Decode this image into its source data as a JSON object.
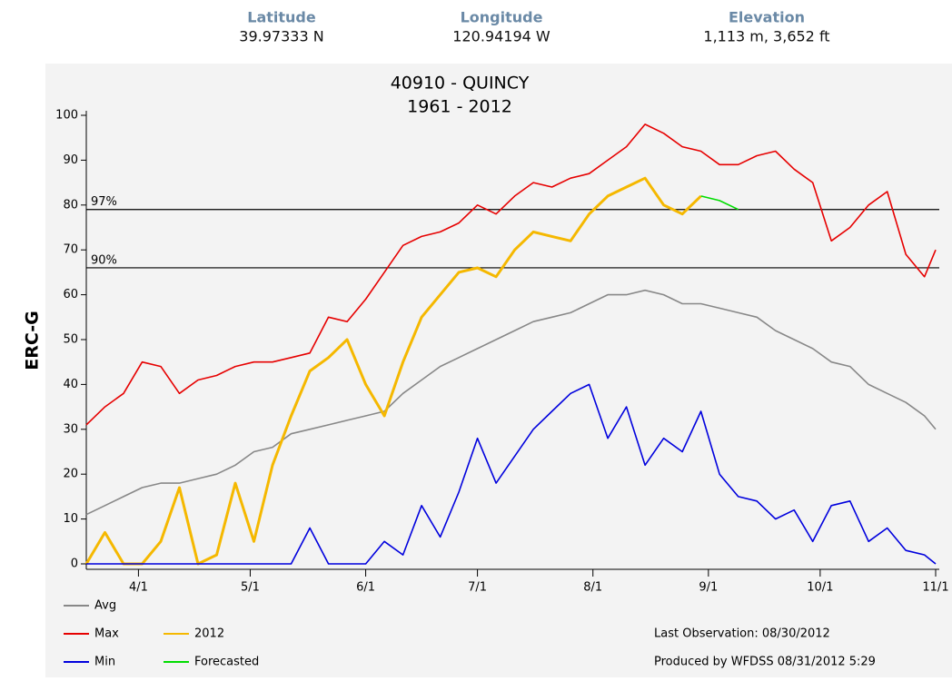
{
  "header": {
    "latitude": {
      "label": "Latitude",
      "value": "39.97333 N"
    },
    "longitude": {
      "label": "Longitude",
      "value": "120.94194 W"
    },
    "elevation": {
      "label": "Elevation",
      "value": "1,113 m, 3,652 ft"
    }
  },
  "chart_data": {
    "type": "line",
    "title": "40910 - QUINCY",
    "subtitle": "1961 - 2012",
    "y_label": "ERC-G",
    "x": [
      "3/18",
      "3/23",
      "3/28",
      "4/2",
      "4/7",
      "4/12",
      "4/17",
      "4/22",
      "4/27",
      "5/2",
      "5/7",
      "5/12",
      "5/17",
      "5/22",
      "5/27",
      "6/1",
      "6/6",
      "6/11",
      "6/16",
      "6/21",
      "6/26",
      "7/1",
      "7/6",
      "7/11",
      "7/16",
      "7/21",
      "7/26",
      "7/31",
      "8/5",
      "8/10",
      "8/15",
      "8/20",
      "8/25",
      "8/30",
      "9/4",
      "9/9",
      "9/14",
      "9/19",
      "9/24",
      "9/29",
      "10/4",
      "10/9",
      "10/14",
      "10/19",
      "10/24",
      "10/29",
      "11/1"
    ],
    "xlim": [
      "3/18",
      "11/1"
    ],
    "xticks": [
      "4/1",
      "5/1",
      "6/1",
      "7/1",
      "8/1",
      "9/1",
      "10/1",
      "11/1"
    ],
    "ylim": [
      0,
      100
    ],
    "yticks": [
      0,
      10,
      20,
      30,
      40,
      50,
      60,
      70,
      80,
      90,
      100
    ],
    "thresholds": [
      {
        "label": "97%",
        "value": 79
      },
      {
        "label": "90%",
        "value": 66
      }
    ],
    "series": [
      {
        "name": "Avg",
        "color": "#888888",
        "values": [
          11,
          13,
          15,
          17,
          18,
          18,
          19,
          20,
          22,
          25,
          26,
          29,
          30,
          31,
          32,
          33,
          34,
          38,
          41,
          44,
          46,
          48,
          50,
          52,
          54,
          55,
          56,
          58,
          60,
          60,
          61,
          60,
          58,
          58,
          57,
          56,
          55,
          52,
          50,
          48,
          45,
          44,
          40,
          38,
          36,
          33,
          30
        ]
      },
      {
        "name": "Max",
        "color": "#e60000",
        "values": [
          31,
          35,
          38,
          45,
          44,
          38,
          41,
          42,
          44,
          45,
          45,
          46,
          47,
          55,
          54,
          59,
          65,
          71,
          73,
          74,
          76,
          80,
          78,
          82,
          85,
          84,
          86,
          87,
          90,
          93,
          98,
          96,
          93,
          92,
          89,
          89,
          91,
          92,
          88,
          85,
          72,
          75,
          80,
          83,
          69,
          64,
          70
        ]
      },
      {
        "name": "2012",
        "color": "#f5b800",
        "values": [
          0,
          7,
          0,
          0,
          5,
          17,
          0,
          2,
          18,
          5,
          22,
          33,
          43,
          46,
          50,
          40,
          33,
          45,
          55,
          60,
          65,
          66,
          64,
          70,
          74,
          73,
          72,
          78,
          82,
          84,
          86,
          80,
          78,
          82,
          null,
          null,
          null,
          null,
          null,
          null,
          null,
          null,
          null,
          null,
          null,
          null,
          null
        ]
      },
      {
        "name": "Min",
        "color": "#0000dd",
        "values": [
          0,
          0,
          0,
          0,
          0,
          0,
          0,
          0,
          0,
          0,
          0,
          0,
          8,
          0,
          0,
          0,
          5,
          2,
          13,
          6,
          16,
          28,
          18,
          24,
          30,
          34,
          38,
          40,
          28,
          35,
          22,
          28,
          25,
          34,
          20,
          15,
          14,
          10,
          12,
          5,
          13,
          14,
          5,
          8,
          3,
          2,
          0
        ]
      },
      {
        "name": "Forecasted",
        "color": "#00dd00",
        "values": [
          null,
          null,
          null,
          null,
          null,
          null,
          null,
          null,
          null,
          null,
          null,
          null,
          null,
          null,
          null,
          null,
          null,
          null,
          null,
          null,
          null,
          null,
          null,
          null,
          null,
          null,
          null,
          null,
          null,
          null,
          null,
          null,
          null,
          82,
          81,
          79,
          null,
          null,
          null,
          null,
          null,
          null,
          null,
          null,
          null,
          null,
          null
        ]
      }
    ],
    "footer": {
      "last_observation": "Last Observation:  08/30/2012",
      "produced": "Produced by WFDSS  08/31/2012  5:29"
    }
  }
}
